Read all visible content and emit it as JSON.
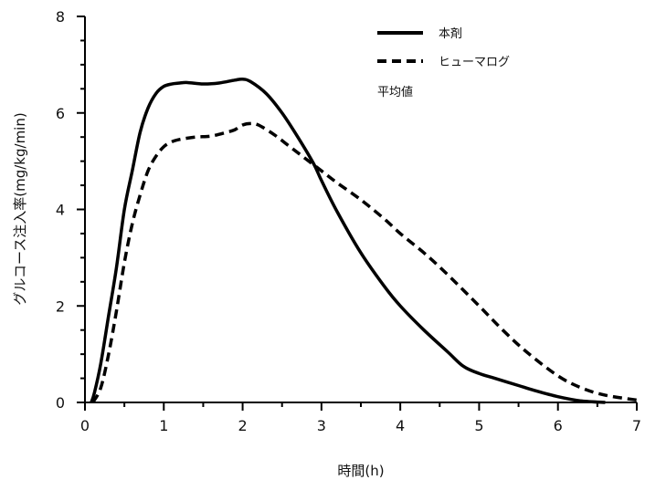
{
  "chart_data": {
    "type": "line",
    "title": "",
    "xlabel": "時間(h)",
    "ylabel": "グルコース注入率(mg/kg/min)",
    "xlim": [
      0,
      7
    ],
    "ylim": [
      0,
      8
    ],
    "x_ticks": [
      0,
      1,
      2,
      3,
      4,
      5,
      6,
      7
    ],
    "y_ticks": [
      0,
      2,
      4,
      6,
      8
    ],
    "grid": false,
    "legend_position": "top-right",
    "note": "平均値",
    "series": [
      {
        "name": "本剤",
        "style": "solid",
        "color": "#000000",
        "x": [
          0.08,
          0.12,
          0.2,
          0.3,
          0.4,
          0.5,
          0.6,
          0.7,
          0.8,
          0.9,
          1.0,
          1.1,
          1.2,
          1.3,
          1.5,
          1.7,
          1.9,
          2.0,
          2.1,
          2.3,
          2.5,
          2.7,
          2.9,
          3.0,
          3.2,
          3.5,
          3.8,
          4.0,
          4.3,
          4.6,
          4.8,
          5.0,
          5.2,
          5.5,
          5.7,
          6.0,
          6.3,
          6.6
        ],
        "y": [
          0.0,
          0.2,
          0.8,
          1.8,
          2.8,
          4.0,
          4.8,
          5.6,
          6.1,
          6.4,
          6.55,
          6.6,
          6.62,
          6.63,
          6.6,
          6.62,
          6.68,
          6.7,
          6.65,
          6.4,
          6.0,
          5.5,
          4.95,
          4.6,
          3.95,
          3.1,
          2.4,
          2.0,
          1.5,
          1.05,
          0.75,
          0.6,
          0.5,
          0.35,
          0.25,
          0.12,
          0.03,
          0.0
        ]
      },
      {
        "name": "ヒューマログ",
        "style": "dashed",
        "color": "#000000",
        "x": [
          0.1,
          0.2,
          0.3,
          0.4,
          0.5,
          0.6,
          0.7,
          0.8,
          0.9,
          1.0,
          1.1,
          1.2,
          1.4,
          1.6,
          1.8,
          1.9,
          2.0,
          2.1,
          2.2,
          2.4,
          2.6,
          2.8,
          3.0,
          3.2,
          3.5,
          3.8,
          4.0,
          4.3,
          4.6,
          5.0,
          5.3,
          5.6,
          6.0,
          6.3,
          6.6,
          7.0
        ],
        "y": [
          0.0,
          0.3,
          1.0,
          1.9,
          2.9,
          3.7,
          4.3,
          4.8,
          5.1,
          5.3,
          5.4,
          5.45,
          5.5,
          5.52,
          5.6,
          5.65,
          5.75,
          5.78,
          5.75,
          5.55,
          5.3,
          5.05,
          4.8,
          4.55,
          4.2,
          3.8,
          3.5,
          3.1,
          2.65,
          2.0,
          1.5,
          1.05,
          0.55,
          0.3,
          0.15,
          0.05
        ]
      }
    ]
  }
}
